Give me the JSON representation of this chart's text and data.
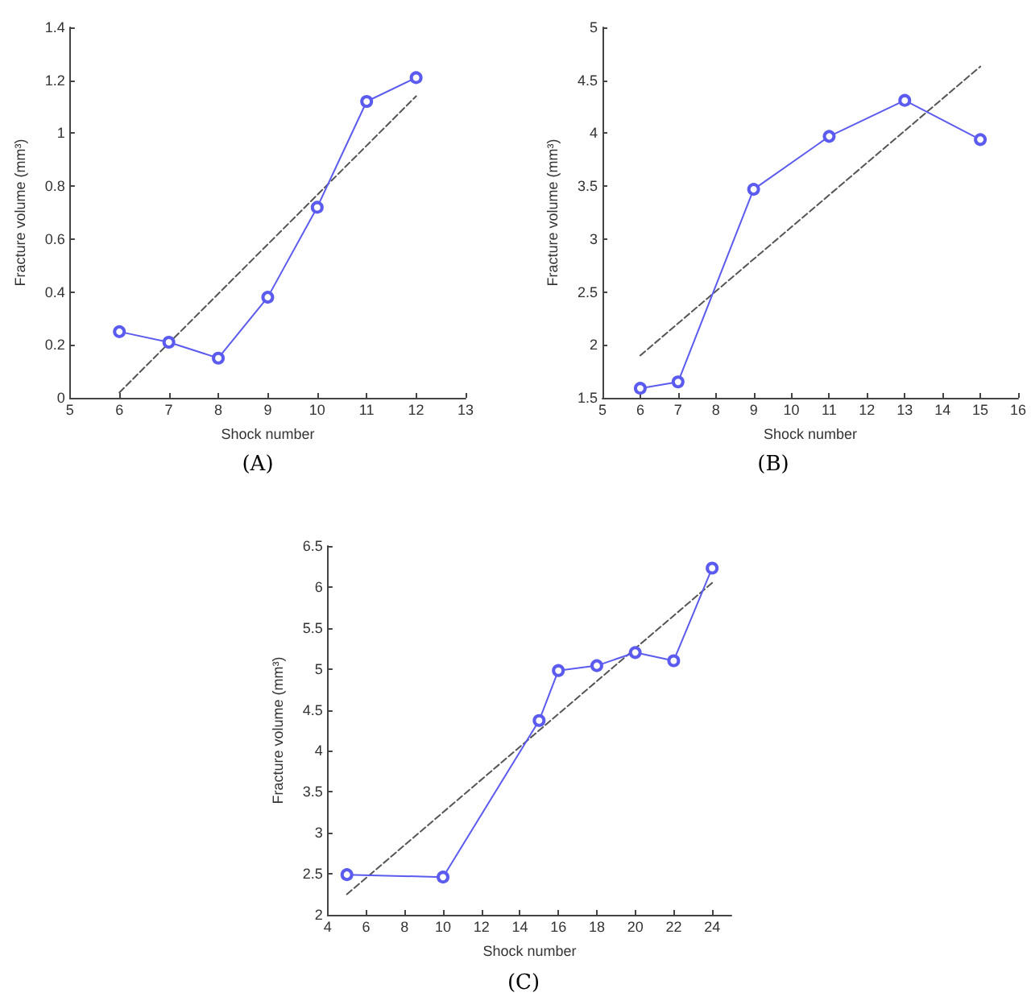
{
  "chart_data": [
    {
      "type": "line",
      "title": "(A)",
      "xlabel": "Shock number",
      "ylabel": "Fracture volume (mm³)",
      "x": [
        6,
        7,
        8,
        9,
        10,
        11,
        12
      ],
      "xlim": [
        5,
        13
      ],
      "xticks": [
        5,
        6,
        7,
        8,
        9,
        10,
        11,
        12,
        13
      ],
      "ylim": [
        0,
        1.4
      ],
      "yticks": [
        0,
        0.2,
        0.4,
        0.6,
        0.8,
        1,
        1.2,
        1.4
      ],
      "grid": false,
      "marker": "circle",
      "line_style": "solid",
      "series": [
        {
          "color": "#5b5bef",
          "values": [
            0.25,
            0.21,
            0.15,
            0.38,
            0.72,
            1.12,
            1.21
          ]
        },
        {
          "type": "line",
          "color": "#555555",
          "x": [
            6,
            12
          ],
          "values": [
            0.02,
            1.14
          ],
          "marker": "none",
          "line_style": "dashed"
        }
      ]
    },
    {
      "type": "line",
      "title": "(B)",
      "xlabel": "Shock number",
      "ylabel": "Fracture volume (mm³)",
      "x": [
        6,
        7,
        9,
        11,
        13,
        15
      ],
      "xlim": [
        5,
        16
      ],
      "xticks": [
        5,
        6,
        7,
        8,
        9,
        10,
        11,
        12,
        13,
        14,
        15,
        16
      ],
      "ylim": [
        1.5,
        5
      ],
      "yticks": [
        1.5,
        2,
        2.5,
        3,
        3.5,
        4,
        4.5,
        5
      ],
      "grid": false,
      "marker": "circle",
      "line_style": "solid",
      "series": [
        {
          "color": "#5b5bef",
          "values": [
            1.59,
            1.65,
            3.47,
            3.97,
            4.31,
            3.94
          ]
        },
        {
          "type": "line",
          "color": "#555555",
          "x": [
            6,
            15
          ],
          "values": [
            1.9,
            4.63
          ],
          "marker": "none",
          "line_style": "dashed"
        }
      ]
    },
    {
      "type": "line",
      "title": "(C)",
      "xlabel": "Shock number",
      "ylabel": "Fracture volume (mm³)",
      "x": [
        5,
        10,
        15,
        16,
        18,
        20,
        22,
        24
      ],
      "xlim": [
        4,
        25
      ],
      "xticks": [
        4,
        6,
        8,
        10,
        12,
        14,
        16,
        18,
        20,
        22,
        24
      ],
      "ylim": [
        2,
        6.5
      ],
      "yticks": [
        2,
        2.5,
        3,
        3.5,
        4,
        4.5,
        5,
        5.5,
        6,
        6.5
      ],
      "grid": false,
      "marker": "circle",
      "line_style": "solid",
      "series": [
        {
          "color": "#5b5bef",
          "values": [
            2.49,
            2.46,
            4.37,
            4.98,
            5.04,
            5.2,
            5.1,
            6.23
          ]
        },
        {
          "type": "line",
          "color": "#555555",
          "x": [
            5,
            24
          ],
          "values": [
            2.25,
            6.05
          ],
          "marker": "none",
          "line_style": "dashed"
        }
      ]
    }
  ]
}
